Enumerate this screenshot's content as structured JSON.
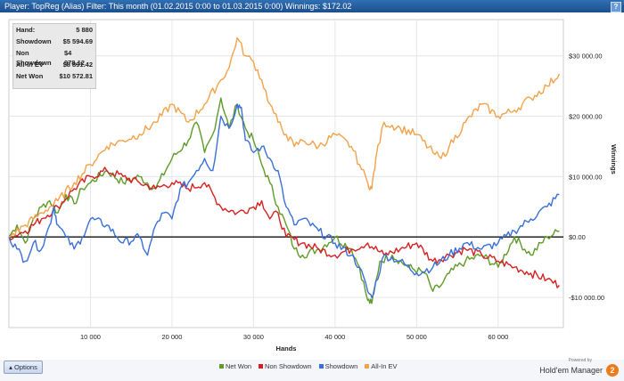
{
  "window": {
    "title": "Player: TopReg (Alias) Filter: This month (01.02.2015 0:00 to 01.03.2015 0:00) Winnings: $172.02",
    "help_label": "?"
  },
  "stats": {
    "rows": [
      {
        "label": "Hand:",
        "value": "5 880"
      },
      {
        "label": "Showdown",
        "value": "$5 594.69"
      },
      {
        "label": "Non Showdown",
        "value": "$4 978.12"
      },
      {
        "label": "All-In EV",
        "value": "$8 891.42"
      },
      {
        "label": "Net Won",
        "value": "$10 572.81"
      }
    ]
  },
  "footer": {
    "options_label": "Options",
    "powered_by": "Powered by",
    "brand_name": "Hold'em Manager",
    "brand_logo": "2"
  },
  "chart_data": {
    "type": "line",
    "xlabel": "Hands",
    "ylabel": "Winnings",
    "xlim": [
      0,
      68000
    ],
    "ylim": [
      -15000,
      36000
    ],
    "x_ticks": [
      10000,
      20000,
      30000,
      40000,
      50000,
      60000
    ],
    "x_tick_labels": [
      "10 000",
      "20 000",
      "30 000",
      "40 000",
      "50 000",
      "60 000"
    ],
    "y_ticks": [
      30000,
      20000,
      10000,
      0,
      -10000
    ],
    "y_tick_labels": [
      "$30 000.00",
      "$20 000.00",
      "$10 000.00",
      "$0.00",
      "-$10 000.00"
    ],
    "grid": true,
    "legend_position": "bottom",
    "series": [
      {
        "name": "Net Won",
        "color": "#5f9a2a",
        "x": [
          0,
          1000,
          2000,
          3000,
          4000,
          5000,
          6000,
          7000,
          8000,
          9000,
          10000,
          12000,
          14000,
          16000,
          18000,
          20000,
          22000,
          23000,
          24000,
          25000,
          26000,
          27000,
          28000,
          29000,
          30000,
          31000,
          32000,
          33000,
          34000,
          35000,
          36000,
          38000,
          40000,
          42000,
          43000,
          44000,
          44500,
          45500,
          47000,
          49000,
          51000,
          52000,
          53000,
          54000,
          56000,
          58000,
          60000,
          62000,
          64000,
          66000,
          67500
        ],
        "y": [
          0,
          2000,
          -1000,
          3000,
          5000,
          6000,
          4000,
          7000,
          5500,
          8000,
          9000,
          11000,
          9000,
          10000,
          8000,
          13000,
          16000,
          19000,
          14000,
          17000,
          23000,
          18000,
          22000,
          18000,
          16000,
          12000,
          9000,
          5000,
          2000,
          -2000,
          -3000,
          -2000,
          0,
          -2000,
          -5000,
          -10500,
          -11000,
          -4000,
          -3000,
          -5000,
          -6000,
          -9000,
          -8000,
          -6000,
          -4000,
          -3000,
          -5000,
          0,
          -3000,
          0,
          1000
        ]
      },
      {
        "name": "Non Showdown",
        "color": "#d62020",
        "x": [
          0,
          2000,
          4000,
          6000,
          8000,
          10000,
          12000,
          14000,
          16000,
          18000,
          20000,
          22000,
          24000,
          26000,
          28000,
          30000,
          31000,
          32000,
          33000,
          34000,
          36000,
          38000,
          40000,
          42000,
          44000,
          46000,
          48000,
          50000,
          52000,
          54000,
          56000,
          58000,
          60000,
          62000,
          64000,
          66000,
          67500
        ],
        "y": [
          0,
          1000,
          3000,
          5000,
          8000,
          10000,
          11000,
          10000,
          9000,
          8000,
          9000,
          8000,
          9000,
          5000,
          4000,
          5000,
          6000,
          3000,
          4000,
          0,
          -1000,
          -2000,
          -3000,
          -2000,
          -1000,
          -3000,
          -2000,
          -1000,
          -4000,
          -3000,
          -2000,
          -3000,
          -4000,
          -5000,
          -6000,
          -7000,
          -8000
        ]
      },
      {
        "name": "Showdown",
        "color": "#3a6fd8",
        "x": [
          0,
          1000,
          2000,
          3000,
          4000,
          5000,
          5500,
          6000,
          7000,
          8000,
          9000,
          10000,
          12000,
          14000,
          16000,
          17000,
          18000,
          19000,
          20000,
          21000,
          22000,
          23000,
          24000,
          25000,
          26000,
          27000,
          28000,
          28500,
          29000,
          30000,
          31000,
          32000,
          33000,
          34000,
          35000,
          36000,
          38000,
          40000,
          42000,
          43000,
          44000,
          44500,
          46000,
          48000,
          50000,
          52000,
          54000,
          56000,
          58000,
          60000,
          62000,
          64000,
          66000,
          67500
        ],
        "y": [
          0,
          -2000,
          -4000,
          -1000,
          -2000,
          2000,
          5000,
          2000,
          0,
          -2000,
          0,
          3000,
          2000,
          -1000,
          0,
          -3000,
          2000,
          4000,
          3000,
          8000,
          9000,
          11000,
          13000,
          11000,
          20000,
          18000,
          22000,
          21500,
          16000,
          14000,
          15000,
          13000,
          11000,
          5000,
          2000,
          3000,
          1000,
          -1000,
          -3000,
          -5000,
          -9000,
          -10000,
          -3000,
          -4000,
          -6000,
          -5000,
          -3000,
          -1000,
          -2000,
          -1000,
          1000,
          3000,
          5000,
          7000
        ]
      },
      {
        "name": "All-In EV",
        "color": "#f2a24a",
        "x": [
          0,
          2000,
          4000,
          6000,
          8000,
          10000,
          12000,
          14000,
          16000,
          18000,
          20000,
          22000,
          24000,
          26000,
          27000,
          28000,
          29000,
          30000,
          31000,
          32000,
          33000,
          34000,
          35000,
          36000,
          38000,
          40000,
          42000,
          43000,
          44000,
          44500,
          45000,
          46000,
          48000,
          50000,
          52000,
          53000,
          54000,
          56000,
          58000,
          60000,
          62000,
          64000,
          66000,
          67500
        ],
        "y": [
          0,
          2000,
          4000,
          6000,
          9000,
          12000,
          15000,
          16000,
          17000,
          19000,
          22000,
          19000,
          22000,
          26000,
          28000,
          33000,
          30000,
          29000,
          26000,
          22000,
          19000,
          17000,
          15000,
          16000,
          15000,
          17000,
          15000,
          12000,
          9000,
          8000,
          13000,
          19000,
          18000,
          17000,
          14000,
          13000,
          15000,
          19000,
          22000,
          20000,
          21000,
          23000,
          25000,
          27000
        ]
      }
    ]
  }
}
